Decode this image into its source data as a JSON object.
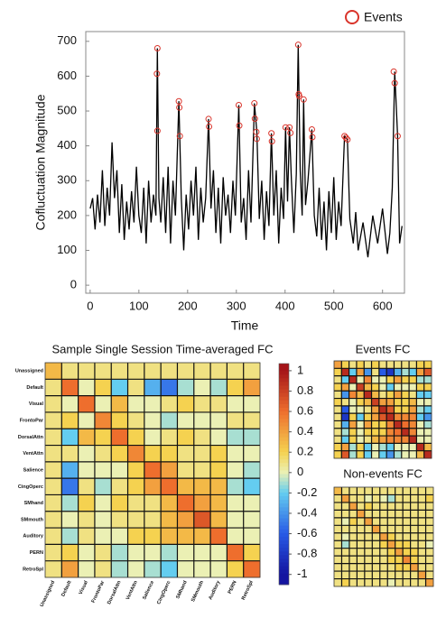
{
  "chart_data": [
    {
      "type": "line",
      "ylabel": "Cofluctuation Magnitude",
      "xlabel": "Time",
      "color": "#000000",
      "xlim": [
        -9,
        645
      ],
      "ylim": [
        -23,
        728
      ],
      "xticks": [
        0,
        100,
        200,
        300,
        400,
        500,
        600
      ],
      "yticks": [
        0,
        100,
        200,
        300,
        400,
        500,
        600,
        700
      ],
      "x": [
        0,
        5,
        10,
        15,
        20,
        25,
        30,
        35,
        40,
        45,
        50,
        55,
        60,
        65,
        70,
        75,
        80,
        85,
        90,
        95,
        100,
        105,
        110,
        115,
        120,
        125,
        130,
        135,
        138,
        141,
        145,
        150,
        155,
        160,
        165,
        170,
        175,
        182,
        187,
        192,
        197,
        202,
        207,
        212,
        217,
        222,
        227,
        232,
        237,
        243,
        248,
        253,
        258,
        263,
        268,
        273,
        278,
        283,
        288,
        293,
        298,
        305,
        310,
        315,
        320,
        325,
        330,
        337,
        342,
        347,
        352,
        357,
        362,
        367,
        372,
        377,
        382,
        387,
        392,
        397,
        401,
        405,
        409,
        413,
        418,
        423,
        427,
        431,
        435,
        438,
        442,
        447,
        455,
        460,
        465,
        470,
        475,
        480,
        485,
        490,
        495,
        500,
        505,
        510,
        515,
        522,
        528,
        533,
        540,
        545,
        550,
        560,
        570,
        580,
        590,
        600,
        610,
        615,
        620,
        625,
        631,
        635,
        640
      ],
      "values": [
        220,
        250,
        160,
        260,
        180,
        330,
        170,
        280,
        200,
        410,
        250,
        330,
        150,
        290,
        130,
        240,
        160,
        270,
        180,
        340,
        200,
        150,
        280,
        120,
        300,
        180,
        260,
        200,
        680,
        250,
        180,
        310,
        150,
        340,
        120,
        300,
        200,
        528,
        250,
        100,
        260,
        160,
        300,
        200,
        340,
        130,
        280,
        180,
        250,
        477,
        220,
        330,
        150,
        280,
        120,
        310,
        200,
        260,
        150,
        300,
        200,
        517,
        180,
        250,
        130,
        330,
        180,
        522,
        440,
        190,
        300,
        130,
        270,
        170,
        436,
        200,
        330,
        120,
        280,
        190,
        453,
        240,
        453,
        300,
        150,
        320,
        690,
        330,
        200,
        533,
        230,
        300,
        447,
        200,
        140,
        280,
        130,
        240,
        100,
        270,
        150,
        310,
        130,
        240,
        170,
        428,
        418,
        190,
        120,
        210,
        100,
        180,
        80,
        200,
        120,
        220,
        90,
        150,
        280,
        613,
        428,
        120,
        170
      ],
      "events": {
        "name": "Events",
        "color": "#d9342b",
        "x": [
          137,
          138,
          138,
          182,
          183,
          184,
          243,
          244,
          305,
          306,
          337,
          338,
          341,
          342,
          372,
          373,
          401,
          409,
          411,
          427,
          428,
          429,
          438,
          455,
          456,
          522,
          525,
          528,
          623,
          625,
          631
        ],
        "values": [
          607,
          680,
          443,
          528,
          510,
          428,
          477,
          455,
          517,
          458,
          522,
          478,
          440,
          420,
          436,
          413,
          453,
          453,
          437,
          690,
          548,
          543,
          533,
          447,
          425,
          428,
          423,
          418,
          613,
          580,
          428
        ]
      }
    },
    {
      "type": "heatmap",
      "title": "Sample Single Session Time-averaged FC",
      "labels": [
        "Unassigned",
        "Default",
        "Visual",
        "FrontoPar",
        "DorsalAttn",
        "VentAttn",
        "Salience",
        "CingOperc",
        "SMhand",
        "SMmouth",
        "Auditory",
        "PERN",
        "RetroSpl"
      ],
      "label_colors": [
        "#aaaaaa",
        "#e8231c",
        "#1c1c8c",
        "#f2e230",
        "#3aa845",
        "#3a9a9a",
        "#000000",
        "#6a1a9a",
        "#5fd0f0",
        "#f08a1c",
        "#c050e0",
        "#2a3ad0",
        "#c8a878"
      ],
      "matrix": [
        [
          0.3,
          0.1,
          0.1,
          0.1,
          0.1,
          0.1,
          0.1,
          0.1,
          0.1,
          0.1,
          0.1,
          0.1,
          0.1
        ],
        [
          0.1,
          0.6,
          0.0,
          0.2,
          -0.2,
          0.1,
          -0.3,
          -0.5,
          -0.1,
          0.0,
          -0.1,
          0.2,
          0.4
        ],
        [
          0.1,
          0.0,
          0.6,
          0.0,
          0.3,
          0.0,
          0.0,
          0.1,
          0.2,
          0.1,
          0.1,
          0.0,
          0.0
        ],
        [
          0.1,
          0.2,
          0.0,
          0.5,
          0.2,
          0.1,
          0.0,
          -0.1,
          0.0,
          0.0,
          0.0,
          0.1,
          0.1
        ],
        [
          0.1,
          -0.2,
          0.3,
          0.2,
          0.6,
          0.2,
          0.0,
          0.1,
          0.2,
          0.1,
          0.0,
          -0.1,
          -0.1
        ],
        [
          0.1,
          0.1,
          0.0,
          0.1,
          0.2,
          0.5,
          0.2,
          0.2,
          0.1,
          0.1,
          0.2,
          0.0,
          0.0
        ],
        [
          0.1,
          -0.3,
          0.0,
          0.0,
          0.0,
          0.2,
          0.6,
          0.4,
          0.1,
          0.1,
          0.2,
          0.0,
          -0.1
        ],
        [
          0.1,
          -0.5,
          0.1,
          -0.1,
          0.1,
          0.2,
          0.4,
          0.6,
          0.3,
          0.3,
          0.3,
          -0.1,
          -0.2
        ],
        [
          0.1,
          -0.1,
          0.2,
          0.0,
          0.2,
          0.1,
          0.1,
          0.3,
          0.6,
          0.4,
          0.3,
          0.0,
          0.0
        ],
        [
          0.1,
          0.0,
          0.1,
          0.0,
          0.1,
          0.1,
          0.1,
          0.3,
          0.4,
          0.7,
          0.3,
          0.0,
          0.0
        ],
        [
          0.1,
          -0.1,
          0.1,
          0.0,
          0.0,
          0.2,
          0.2,
          0.3,
          0.3,
          0.3,
          0.6,
          0.0,
          0.0
        ],
        [
          0.1,
          0.2,
          0.0,
          0.1,
          -0.1,
          0.0,
          0.0,
          -0.1,
          0.0,
          0.0,
          0.0,
          0.6,
          0.2
        ],
        [
          0.1,
          0.4,
          0.0,
          0.1,
          -0.1,
          0.0,
          -0.1,
          -0.2,
          0.0,
          0.0,
          0.0,
          0.2,
          0.6
        ]
      ],
      "colorbar": {
        "ylim": [
          -1.1,
          1.07
        ],
        "yticks": [
          1,
          0.8,
          0.6,
          0.4,
          0.2,
          0,
          -0.2,
          -0.4,
          -0.6,
          -0.8,
          -1
        ]
      }
    },
    {
      "type": "heatmap",
      "title": "Events FC",
      "matrix": [
        [
          0.4,
          0.2,
          0.1,
          0.2,
          0.1,
          0.2,
          0.1,
          0.1,
          0.1,
          0.1,
          0.1,
          0.2,
          0.2
        ],
        [
          0.2,
          0.9,
          -0.2,
          0.4,
          -0.4,
          0.1,
          -0.6,
          -0.8,
          -0.3,
          -0.1,
          -0.2,
          0.4,
          0.7
        ],
        [
          0.1,
          -0.2,
          0.9,
          0.0,
          0.5,
          0.0,
          0.0,
          0.2,
          0.4,
          0.2,
          0.2,
          -0.1,
          -0.1
        ],
        [
          0.2,
          0.4,
          0.0,
          0.8,
          0.3,
          0.2,
          0.0,
          -0.2,
          0.0,
          0.0,
          0.0,
          0.2,
          0.2
        ],
        [
          0.1,
          -0.4,
          0.5,
          0.3,
          0.9,
          0.3,
          0.1,
          0.2,
          0.4,
          0.2,
          0.1,
          -0.2,
          -0.2
        ],
        [
          0.2,
          0.1,
          0.0,
          0.2,
          0.3,
          0.8,
          0.4,
          0.4,
          0.2,
          0.2,
          0.3,
          0.0,
          0.0
        ],
        [
          0.1,
          -0.6,
          0.0,
          0.0,
          0.1,
          0.4,
          0.9,
          0.7,
          0.2,
          0.2,
          0.4,
          -0.1,
          -0.2
        ],
        [
          0.1,
          -0.8,
          0.2,
          -0.2,
          0.2,
          0.4,
          0.7,
          0.9,
          0.5,
          0.5,
          0.5,
          -0.2,
          -0.4
        ],
        [
          0.1,
          -0.3,
          0.4,
          0.0,
          0.4,
          0.2,
          0.2,
          0.5,
          0.9,
          0.6,
          0.5,
          0.0,
          -0.1
        ],
        [
          0.1,
          -0.1,
          0.2,
          0.0,
          0.2,
          0.2,
          0.2,
          0.5,
          0.6,
          0.9,
          0.5,
          0.0,
          0.0
        ],
        [
          0.1,
          -0.2,
          0.2,
          0.0,
          0.1,
          0.3,
          0.4,
          0.5,
          0.5,
          0.5,
          0.9,
          0.0,
          0.0
        ],
        [
          0.2,
          0.4,
          -0.1,
          0.2,
          -0.2,
          0.0,
          -0.1,
          -0.2,
          0.0,
          0.0,
          0.0,
          0.9,
          0.3
        ],
        [
          0.2,
          0.7,
          -0.1,
          0.2,
          -0.2,
          0.0,
          -0.2,
          -0.4,
          -0.1,
          0.0,
          0.0,
          0.3,
          0.9
        ]
      ]
    },
    {
      "type": "heatmap",
      "title": "Non-events FC",
      "matrix": [
        [
          0.3,
          0.1,
          0.1,
          0.1,
          0.1,
          0.1,
          0.1,
          0.1,
          0.1,
          0.1,
          0.1,
          0.1,
          0.1
        ],
        [
          0.1,
          0.4,
          0.1,
          0.1,
          0.0,
          0.1,
          0.0,
          -0.1,
          0.1,
          0.1,
          0.1,
          0.1,
          0.2
        ],
        [
          0.1,
          0.1,
          0.4,
          0.1,
          0.2,
          0.1,
          0.1,
          0.1,
          0.1,
          0.1,
          0.1,
          0.1,
          0.1
        ],
        [
          0.1,
          0.1,
          0.1,
          0.4,
          0.1,
          0.1,
          0.1,
          0.1,
          0.1,
          0.1,
          0.1,
          0.1,
          0.1
        ],
        [
          0.1,
          0.0,
          0.2,
          0.1,
          0.4,
          0.1,
          0.1,
          0.1,
          0.1,
          0.1,
          0.1,
          0.1,
          0.1
        ],
        [
          0.1,
          0.1,
          0.1,
          0.1,
          0.1,
          0.4,
          0.1,
          0.1,
          0.1,
          0.1,
          0.1,
          0.1,
          0.1
        ],
        [
          0.1,
          0.0,
          0.1,
          0.1,
          0.1,
          0.1,
          0.4,
          0.2,
          0.1,
          0.1,
          0.1,
          0.1,
          0.1
        ],
        [
          0.1,
          -0.1,
          0.1,
          0.1,
          0.1,
          0.1,
          0.2,
          0.4,
          0.2,
          0.2,
          0.1,
          0.1,
          0.0
        ],
        [
          0.1,
          0.1,
          0.1,
          0.1,
          0.1,
          0.1,
          0.1,
          0.2,
          0.4,
          0.2,
          0.2,
          0.1,
          0.1
        ],
        [
          0.1,
          0.1,
          0.1,
          0.1,
          0.1,
          0.1,
          0.1,
          0.2,
          0.2,
          0.5,
          0.2,
          0.1,
          0.1
        ],
        [
          0.1,
          0.1,
          0.1,
          0.1,
          0.1,
          0.1,
          0.1,
          0.1,
          0.2,
          0.2,
          0.4,
          0.1,
          0.1
        ],
        [
          0.1,
          0.1,
          0.1,
          0.1,
          0.1,
          0.1,
          0.1,
          0.1,
          0.1,
          0.1,
          0.1,
          0.4,
          0.1
        ],
        [
          0.1,
          0.2,
          0.1,
          0.1,
          0.1,
          0.1,
          0.1,
          0.0,
          0.1,
          0.1,
          0.1,
          0.1,
          0.4
        ]
      ]
    }
  ]
}
